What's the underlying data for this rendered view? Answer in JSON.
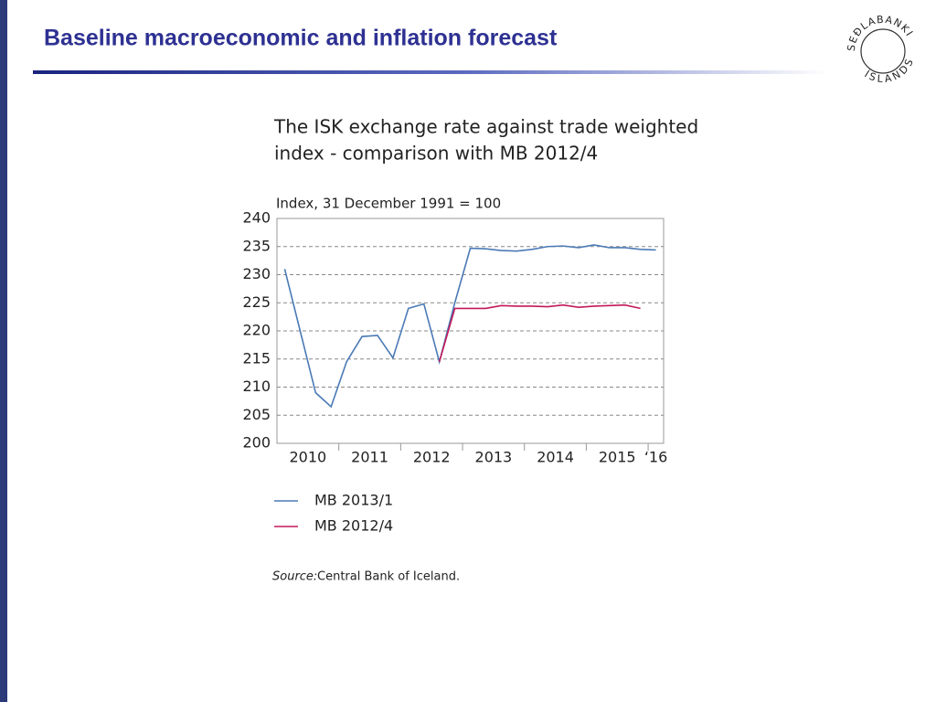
{
  "header": {
    "title": "Baseline macroeconomic and inflation forecast",
    "logo_top": "SEÐLABANKI",
    "logo_bottom": "ÍSLANDS"
  },
  "chart_data": {
    "type": "line",
    "title_lines": [
      "The ISK exchange rate against trade weighted",
      "index  - comparison with MB 2012/4"
    ],
    "y_axis_label": "Index, 31 December 1991 = 100",
    "categories": [
      null,
      null,
      null,
      null,
      null,
      null,
      null,
      null,
      null,
      null,
      null,
      null,
      null,
      null,
      null,
      null,
      null,
      null,
      null,
      null,
      null,
      null,
      null,
      null,
      null
    ],
    "year_labels": [
      "2010",
      "2011",
      "2012",
      "2013",
      "2014",
      "2015",
      "‘16"
    ],
    "series": [
      {
        "name": "MB 2013/1",
        "color": "#4a7ab5",
        "values": [
          231,
          220,
          209,
          206.5,
          214.5,
          219,
          219.2,
          215.2,
          224,
          224.8,
          214.5,
          225,
          234.7,
          234.6,
          234.3,
          234.2,
          234.5,
          235,
          235.1,
          234.8,
          235.3,
          234.8,
          234.8,
          234.5,
          234.4
        ]
      },
      {
        "name": "MB 2012/4",
        "color": "#c2185b",
        "values": [
          null,
          null,
          null,
          null,
          null,
          null,
          null,
          null,
          null,
          null,
          214.5,
          224,
          224,
          224,
          224.5,
          224.4,
          224.4,
          224.3,
          224.6,
          224.2,
          224.4,
          224.5,
          224.6,
          224,
          null
        ]
      }
    ],
    "ylim": [
      200,
      240
    ],
    "yticks": [
      200,
      205,
      210,
      215,
      220,
      225,
      230,
      235,
      240
    ],
    "grid": true,
    "source_label": "Source:",
    "source": "Central Bank of Iceland."
  }
}
